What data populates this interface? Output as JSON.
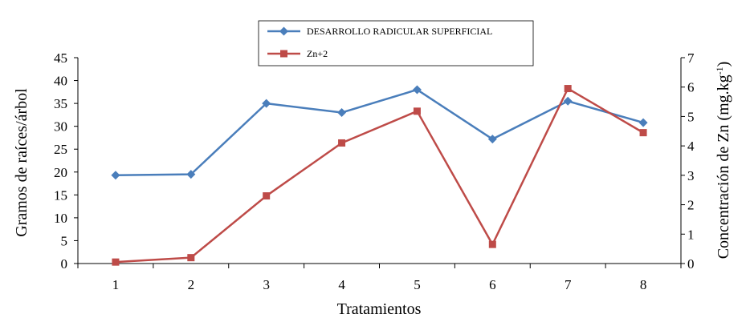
{
  "chart_data": {
    "type": "line",
    "xlabel": "Tratamientos",
    "ylabel_left": "Gramos de raíces/árbol",
    "ylabel_right_prefix": "Concentración de Zn (mg.kg",
    "ylabel_right_sup": "-1",
    "ylabel_right_suffix": ")",
    "categories": [
      "1",
      "2",
      "3",
      "4",
      "5",
      "6",
      "7",
      "8"
    ],
    "ylim_left": [
      0,
      45
    ],
    "yticks_left": [
      "0",
      "5",
      "10",
      "15",
      "20",
      "25",
      "30",
      "35",
      "40",
      "45"
    ],
    "ylim_right": [
      0,
      7
    ],
    "yticks_right": [
      "0",
      "1",
      "2",
      "3",
      "4",
      "5",
      "6",
      "7"
    ],
    "grid": false,
    "legend_position": "top-center",
    "series": [
      {
        "name": "DESARROLLO RADICULAR SUPERFICIAL",
        "axis": "left",
        "color": "#4a7ebb",
        "marker": "diamond",
        "values": [
          19.3,
          19.5,
          35.0,
          33.0,
          38.0,
          27.2,
          35.5,
          30.8
        ]
      },
      {
        "name": "Zn+2",
        "axis": "right",
        "color": "#be4b48",
        "marker": "square",
        "values": [
          0.05,
          0.2,
          2.3,
          4.1,
          5.18,
          0.65,
          5.95,
          4.45
        ]
      }
    ]
  }
}
